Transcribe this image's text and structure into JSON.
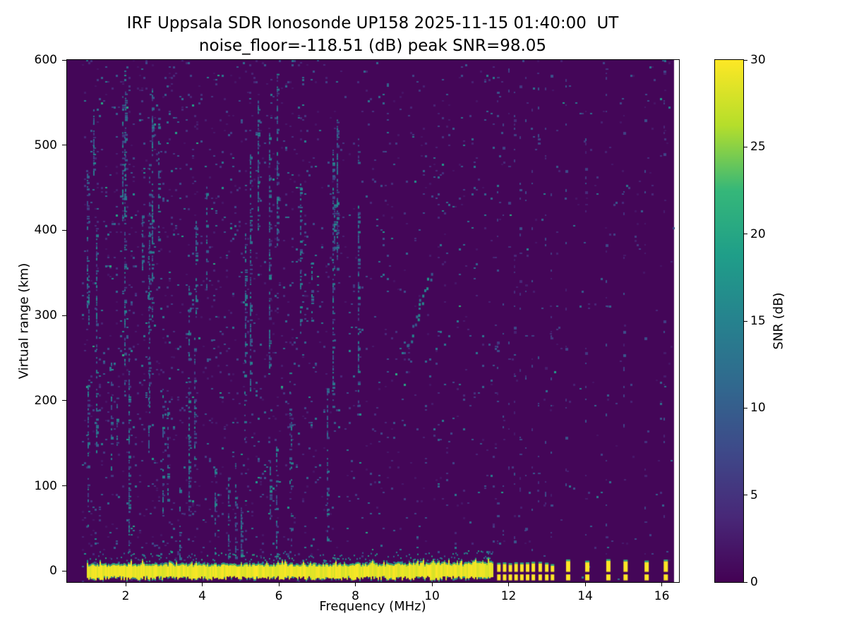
{
  "chart_data": {
    "type": "heatmap",
    "title": "IRF Uppsala SDR Ionosonde UP158 2025-11-15 01:40:00  UT",
    "subtitle": "noise_floor=-118.51 (dB) peak SNR=98.05",
    "station": "IRF Uppsala SDR Ionosonde UP158",
    "timestamp_ut": "2025-11-15 01:40:00",
    "noise_floor_db": -118.51,
    "peak_snr_db": 98.05,
    "xlabel": "Frequency (MHz)",
    "ylabel": "Virtual range (km)",
    "xlim": [
      0.47,
      16.45
    ],
    "ylim": [
      -13,
      600
    ],
    "xticks": [
      2,
      4,
      6,
      8,
      10,
      12,
      14,
      16
    ],
    "yticks": [
      0,
      100,
      200,
      300,
      400,
      500,
      600
    ],
    "grid": false,
    "colorbar": {
      "label": "SNR (dB)",
      "ticks": [
        0,
        5,
        10,
        15,
        20,
        25,
        30
      ],
      "min": 0,
      "max": 30,
      "colormap": "viridis",
      "position": "right"
    },
    "features": {
      "background_snr_db": 0,
      "ground_pulse_band": {
        "center_km": 0,
        "freq_start_mhz": 1.0,
        "freq_end_mhz": 11.6,
        "thickness_km": 14,
        "snr_db": 30
      },
      "discrete_pulses_mhz": [
        11.7,
        11.85,
        12.0,
        12.15,
        12.3,
        12.45,
        12.6,
        12.78,
        12.95,
        13.1,
        13.5,
        14.0,
        14.55,
        15.0,
        15.55,
        16.05
      ],
      "echo_trace": {
        "freq_mhz": [
          9.35,
          9.95
        ],
        "range_km": [
          265,
          350
        ],
        "snr_db": 12
      },
      "noise_speckle_snr_db": [
        2,
        15
      ]
    }
  }
}
